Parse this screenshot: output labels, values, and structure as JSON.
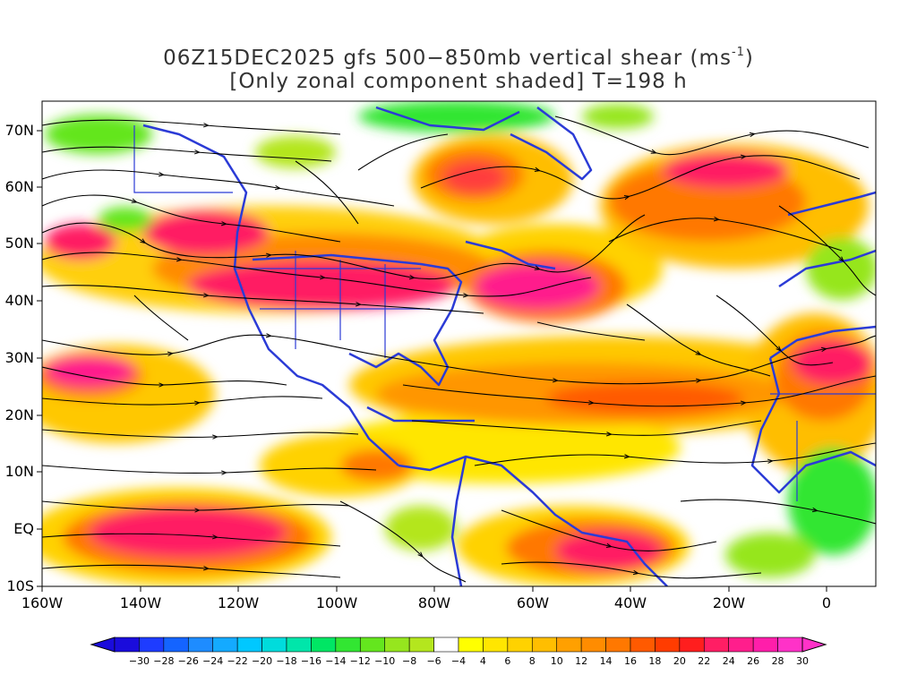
{
  "title": {
    "line1": "06Z15DEC2025 gfs 500−850mb vertical shear (ms",
    "line1_superscript": "-1",
    "line1_end": ")",
    "line2": "[Only zonal component shaded] T=198 h"
  },
  "map": {
    "lat_labels": [
      "70N",
      "60N",
      "50N",
      "40N",
      "30N",
      "20N",
      "10N",
      "EQ",
      "10S"
    ],
    "lon_labels": [
      "160W",
      "140W",
      "120W",
      "100W",
      "80W",
      "60W",
      "40W",
      "20W",
      "0"
    ],
    "coastline_color": "#2b3bd6",
    "streamline_color": "#000000"
  },
  "colorbar": {
    "labels": [
      "−30",
      "−28",
      "−26",
      "−24",
      "−22",
      "−20",
      "−18",
      "−16",
      "−14",
      "−12",
      "−10",
      "−8",
      "−6",
      "−4",
      "4",
      "6",
      "8",
      "10",
      "12",
      "14",
      "16",
      "18",
      "20",
      "22",
      "24",
      "26",
      "28",
      "30"
    ],
    "colors": [
      "#1a0cdc",
      "#1e3cff",
      "#1464ff",
      "#1e8cff",
      "#14aaff",
      "#00c8ff",
      "#00dcdc",
      "#00e6aa",
      "#00e664",
      "#32e632",
      "#64e61e",
      "#96e61e",
      "#b4e61e",
      "#ffffff",
      "#ffff00",
      "#ffe600",
      "#ffd200",
      "#ffbe00",
      "#ffa000",
      "#ff8c00",
      "#ff7800",
      "#ff5a00",
      "#ff3c00",
      "#ff1e1e",
      "#ff1e64",
      "#ff1e8c",
      "#ff1eaa",
      "#ff32c8"
    ]
  }
}
